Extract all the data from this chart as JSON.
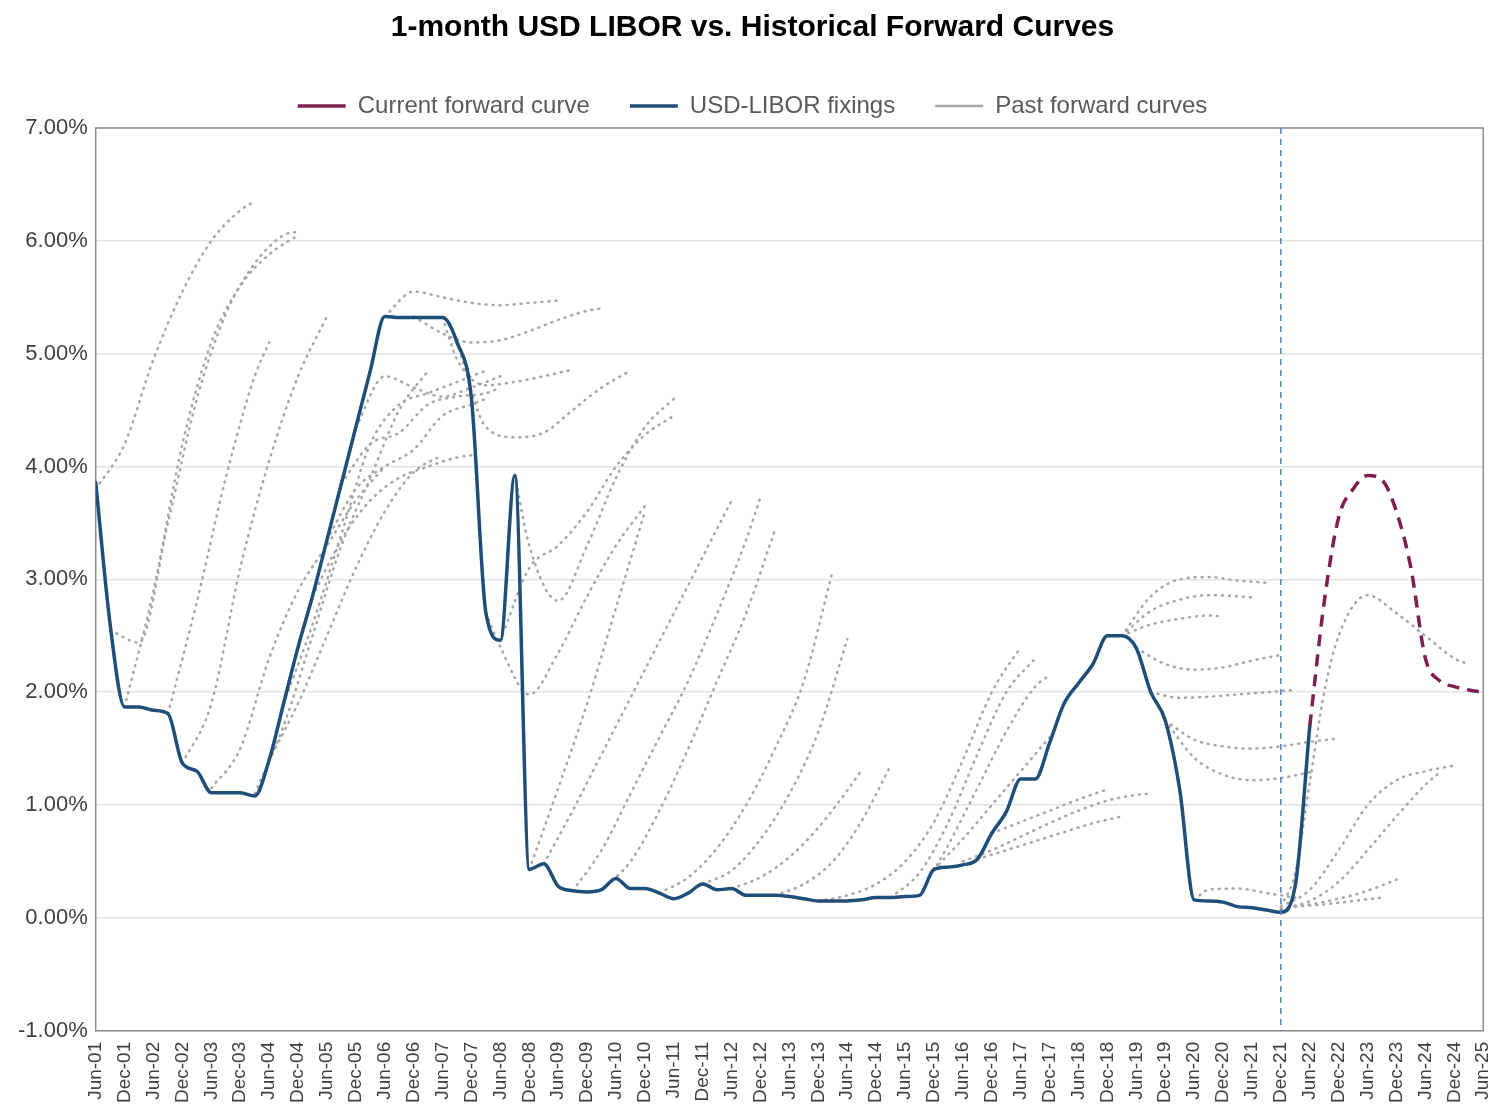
{
  "chart_data": {
    "type": "line",
    "title": "1-month USD LIBOR vs. Historical Forward Curves",
    "marker": "none",
    "grid": "y",
    "legend": "top",
    "xlim": [
      "2001-06",
      "2025-06"
    ],
    "xticks": [
      {
        "value": "2001-06",
        "label": "Jun-01"
      },
      {
        "value": "2001-12",
        "label": "Dec-01"
      },
      {
        "value": "2002-06",
        "label": "Jun-02"
      },
      {
        "value": "2002-12",
        "label": "Dec-02"
      },
      {
        "value": "2003-06",
        "label": "Jun-03"
      },
      {
        "value": "2003-12",
        "label": "Dec-03"
      },
      {
        "value": "2004-06",
        "label": "Jun-04"
      },
      {
        "value": "2004-12",
        "label": "Dec-04"
      },
      {
        "value": "2005-06",
        "label": "Jun-05"
      },
      {
        "value": "2005-12",
        "label": "Dec-05"
      },
      {
        "value": "2006-06",
        "label": "Jun-06"
      },
      {
        "value": "2006-12",
        "label": "Dec-06"
      },
      {
        "value": "2007-06",
        "label": "Jun-07"
      },
      {
        "value": "2007-12",
        "label": "Dec-07"
      },
      {
        "value": "2008-06",
        "label": "Jun-08"
      },
      {
        "value": "2008-12",
        "label": "Dec-08"
      },
      {
        "value": "2009-06",
        "label": "Jun-09"
      },
      {
        "value": "2009-12",
        "label": "Dec-09"
      },
      {
        "value": "2010-06",
        "label": "Jun-10"
      },
      {
        "value": "2010-12",
        "label": "Dec-10"
      },
      {
        "value": "2011-06",
        "label": "Jun-11"
      },
      {
        "value": "2011-12",
        "label": "Dec-11"
      },
      {
        "value": "2012-06",
        "label": "Jun-12"
      },
      {
        "value": "2012-12",
        "label": "Dec-12"
      },
      {
        "value": "2013-06",
        "label": "Jun-13"
      },
      {
        "value": "2013-12",
        "label": "Dec-13"
      },
      {
        "value": "2014-06",
        "label": "Jun-14"
      },
      {
        "value": "2014-12",
        "label": "Dec-14"
      },
      {
        "value": "2015-06",
        "label": "Jun-15"
      },
      {
        "value": "2015-12",
        "label": "Dec-15"
      },
      {
        "value": "2016-06",
        "label": "Jun-16"
      },
      {
        "value": "2016-12",
        "label": "Dec-16"
      },
      {
        "value": "2017-06",
        "label": "Jun-17"
      },
      {
        "value": "2017-12",
        "label": "Dec-17"
      },
      {
        "value": "2018-06",
        "label": "Jun-18"
      },
      {
        "value": "2018-12",
        "label": "Dec-18"
      },
      {
        "value": "2019-06",
        "label": "Jun-19"
      },
      {
        "value": "2019-12",
        "label": "Dec-19"
      },
      {
        "value": "2020-06",
        "label": "Jun-20"
      },
      {
        "value": "2020-12",
        "label": "Dec-20"
      },
      {
        "value": "2021-06",
        "label": "Jun-21"
      },
      {
        "value": "2021-12",
        "label": "Dec-21"
      },
      {
        "value": "2022-06",
        "label": "Jun-22"
      },
      {
        "value": "2022-12",
        "label": "Dec-22"
      },
      {
        "value": "2023-06",
        "label": "Jun-23"
      },
      {
        "value": "2023-12",
        "label": "Dec-23"
      },
      {
        "value": "2024-06",
        "label": "Jun-24"
      },
      {
        "value": "2024-12",
        "label": "Dec-24"
      },
      {
        "value": "2025-06",
        "label": "Jun-25"
      }
    ],
    "ylim": [
      -1,
      7
    ],
    "yticks": [
      {
        "value": -1,
        "label": "-1.00%"
      },
      {
        "value": 0,
        "label": "0.00%"
      },
      {
        "value": 1,
        "label": "1.00%"
      },
      {
        "value": 2,
        "label": "2.00%"
      },
      {
        "value": 3,
        "label": "3.00%"
      },
      {
        "value": 4,
        "label": "4.00%"
      },
      {
        "value": 5,
        "label": "5.00%"
      },
      {
        "value": 6,
        "label": "6.00%"
      },
      {
        "value": 7,
        "label": "7.00%"
      }
    ],
    "ref_lines": [
      {
        "axis": "x",
        "value": "2021-12",
        "color": "#4f81bd",
        "line_style": "dashed"
      }
    ],
    "series": [
      {
        "name": "Past forward curves",
        "color": "#a6a6a6",
        "line_style": "dotted",
        "x": [
          "2001-06",
          "2001-12",
          "2002-06",
          "2002-12",
          "2003-06",
          "2003-12",
          "2004-03"
        ],
        "values": [
          3.8,
          4.2,
          4.95,
          5.55,
          6.0,
          6.27,
          6.35
        ]
      },
      {
        "color": "#a6a6a6",
        "line_style": "dotted",
        "x": [
          "2001-09",
          "2002-03",
          "2002-09",
          "2003-03",
          "2003-09",
          "2004-03",
          "2004-09",
          "2004-12"
        ],
        "values": [
          2.55,
          2.44,
          3.5,
          4.6,
          5.35,
          5.8,
          6.05,
          6.08
        ]
      },
      {
        "color": "#a6a6a6",
        "line_style": "dotted",
        "x": [
          "2001-12",
          "2002-06",
          "2002-12",
          "2003-06",
          "2003-12",
          "2004-06",
          "2004-12"
        ],
        "values": [
          1.87,
          2.9,
          4.2,
          5.1,
          5.6,
          5.88,
          6.05
        ]
      },
      {
        "color": "#a6a6a6",
        "line_style": "dotted",
        "x": [
          "2002-09",
          "2003-03",
          "2003-09",
          "2004-03",
          "2004-06"
        ],
        "values": [
          1.81,
          2.8,
          3.9,
          4.8,
          5.1
        ]
      },
      {
        "color": "#a6a6a6",
        "line_style": "dotted",
        "x": [
          "2002-12",
          "2003-06",
          "2003-12",
          "2004-06",
          "2004-12",
          "2005-06"
        ],
        "values": [
          1.37,
          1.9,
          3.1,
          4.05,
          4.8,
          5.33
        ]
      },
      {
        "color": "#a6a6a6",
        "line_style": "dotted",
        "x": [
          "2003-06",
          "2003-12",
          "2004-06",
          "2004-12",
          "2005-06",
          "2005-12",
          "2006-06"
        ],
        "values": [
          1.15,
          1.5,
          2.3,
          2.9,
          3.3,
          3.7,
          4.0
        ]
      },
      {
        "color": "#a6a6a6",
        "line_style": "dotted",
        "x": [
          "2004-03",
          "2004-09",
          "2005-03",
          "2005-09",
          "2006-03",
          "2006-09",
          "2007-03"
        ],
        "values": [
          1.1,
          1.7,
          2.5,
          3.3,
          3.9,
          4.5,
          4.85
        ]
      },
      {
        "color": "#a6a6a6",
        "line_style": "dotted",
        "x": [
          "2004-06",
          "2004-12",
          "2005-06",
          "2005-12",
          "2006-06",
          "2006-12",
          "2007-06"
        ],
        "values": [
          1.4,
          1.9,
          2.5,
          3.1,
          3.6,
          3.95,
          4.1
        ]
      },
      {
        "color": "#a6a6a6",
        "line_style": "dotted",
        "x": [
          "2004-09",
          "2005-03",
          "2005-09",
          "2006-03",
          "2006-09",
          "2007-03",
          "2007-09",
          "2008-03"
        ],
        "values": [
          1.9,
          2.6,
          3.4,
          4.2,
          4.55,
          4.65,
          4.75,
          4.85
        ]
      },
      {
        "color": "#a6a6a6",
        "line_style": "dotted",
        "x": [
          "2005-12",
          "2006-06",
          "2006-12",
          "2007-06",
          "2007-12",
          "2008-06"
        ],
        "values": [
          4.35,
          4.8,
          4.7,
          4.62,
          4.7,
          4.8
        ]
      },
      {
        "color": "#a6a6a6",
        "line_style": "dotted",
        "x": [
          "2005-09",
          "2006-03",
          "2006-09",
          "2007-03",
          "2007-09",
          "2008-03",
          "2008-06"
        ],
        "values": [
          3.85,
          4.2,
          4.3,
          4.55,
          4.62,
          4.65,
          4.7
        ]
      },
      {
        "color": "#a6a6a6",
        "line_style": "dotted",
        "x": [
          "2005-06",
          "2005-12",
          "2006-06",
          "2006-12",
          "2007-06",
          "2007-12",
          "2008-03"
        ],
        "values": [
          3.35,
          3.8,
          4.0,
          4.15,
          4.45,
          4.55,
          4.6
        ]
      },
      {
        "color": "#a6a6a6",
        "line_style": "dotted",
        "x": [
          "2005-03",
          "2005-09",
          "2006-03",
          "2006-09",
          "2007-03",
          "2007-09",
          "2007-12"
        ],
        "values": [
          2.85,
          3.35,
          3.7,
          3.9,
          4.0,
          4.08,
          4.1
        ]
      },
      {
        "color": "#a6a6a6",
        "line_style": "dotted",
        "x": [
          "2006-06",
          "2006-12",
          "2007-06",
          "2007-12",
          "2008-06",
          "2008-12",
          "2009-06"
        ],
        "values": [
          5.33,
          5.55,
          5.5,
          5.45,
          5.43,
          5.45,
          5.47
        ]
      },
      {
        "color": "#a6a6a6",
        "line_style": "dotted",
        "x": [
          "2006-12",
          "2007-06",
          "2007-12",
          "2008-06",
          "2008-12",
          "2009-06",
          "2009-12",
          "2010-03"
        ],
        "values": [
          5.33,
          5.18,
          5.1,
          5.12,
          5.2,
          5.3,
          5.38,
          5.4
        ]
      },
      {
        "color": "#a6a6a6",
        "line_style": "dotted",
        "x": [
          "2007-06",
          "2007-09",
          "2008-03",
          "2008-09",
          "2009-03",
          "2009-09"
        ],
        "values": [
          5.32,
          4.95,
          4.72,
          4.75,
          4.8,
          4.86
        ]
      },
      {
        "color": "#a6a6a6",
        "line_style": "dotted",
        "x": [
          "2007-09",
          "2008-03",
          "2008-09",
          "2009-03",
          "2009-09",
          "2010-03",
          "2010-09"
        ],
        "values": [
          5.1,
          4.35,
          4.26,
          4.3,
          4.5,
          4.7,
          4.85
        ]
      },
      {
        "color": "#a6a6a6",
        "line_style": "dotted",
        "x": [
          "2008-03",
          "2008-06",
          "2008-12",
          "2009-06",
          "2009-12",
          "2010-06",
          "2010-12"
        ],
        "values": [
          2.7,
          2.4,
          1.98,
          2.35,
          2.85,
          3.3,
          3.65
        ]
      },
      {
        "color": "#a6a6a6",
        "line_style": "dotted",
        "x": [
          "2008-09",
          "2008-12",
          "2009-06",
          "2009-12",
          "2010-06",
          "2010-12",
          "2011-06"
        ],
        "values": [
          3.92,
          3.3,
          2.81,
          3.3,
          3.9,
          4.35,
          4.6
        ]
      },
      {
        "color": "#a6a6a6",
        "line_style": "dotted",
        "x": [
          "2008-06",
          "2008-12",
          "2009-06",
          "2009-12",
          "2010-06",
          "2010-12",
          "2011-06"
        ],
        "values": [
          2.46,
          3.1,
          3.3,
          3.6,
          4.0,
          4.28,
          4.45
        ]
      },
      {
        "color": "#a6a6a6",
        "line_style": "dotted",
        "x": [
          "2008-12",
          "2009-06",
          "2009-12",
          "2010-06",
          "2010-12"
        ],
        "values": [
          0.43,
          1.15,
          1.9,
          2.75,
          3.6
        ]
      },
      {
        "color": "#a6a6a6",
        "line_style": "dotted",
        "x": [
          "2009-03",
          "2009-09",
          "2010-03",
          "2010-09",
          "2011-03",
          "2011-09",
          "2012-03",
          "2012-06"
        ],
        "values": [
          0.48,
          0.95,
          1.45,
          1.95,
          2.45,
          2.95,
          3.45,
          3.7
        ]
      },
      {
        "color": "#a6a6a6",
        "line_style": "dotted",
        "x": [
          "2009-09",
          "2010-03",
          "2010-09",
          "2011-03",
          "2011-09",
          "2012-03",
          "2012-09",
          "2012-12"
        ],
        "values": [
          0.24,
          0.6,
          1.1,
          1.6,
          2.1,
          2.7,
          3.35,
          3.73
        ]
      },
      {
        "color": "#a6a6a6",
        "line_style": "dotted",
        "x": [
          "2010-03",
          "2010-09",
          "2011-03",
          "2011-09",
          "2012-03",
          "2012-09",
          "2013-03"
        ],
        "values": [
          0.25,
          0.5,
          0.95,
          1.5,
          2.1,
          2.7,
          3.44
        ]
      },
      {
        "color": "#a6a6a6",
        "line_style": "dotted",
        "x": [
          "2011-03",
          "2011-09",
          "2012-03",
          "2012-09",
          "2013-03",
          "2013-09",
          "2014-03"
        ],
        "values": [
          0.22,
          0.36,
          0.62,
          1.0,
          1.5,
          2.1,
          3.08
        ]
      },
      {
        "color": "#a6a6a6",
        "line_style": "dotted",
        "x": [
          "2011-12",
          "2012-06",
          "2012-12",
          "2013-06",
          "2013-12",
          "2014-06"
        ],
        "values": [
          0.3,
          0.42,
          0.7,
          1.1,
          1.65,
          2.47
        ]
      },
      {
        "color": "#a6a6a6",
        "line_style": "dotted",
        "x": [
          "2012-06",
          "2012-12",
          "2013-06",
          "2013-12",
          "2014-06",
          "2014-09"
        ],
        "values": [
          0.26,
          0.36,
          0.54,
          0.8,
          1.13,
          1.31
        ]
      },
      {
        "color": "#a6a6a6",
        "line_style": "dotted",
        "x": [
          "2013-03",
          "2013-09",
          "2014-03",
          "2014-09",
          "2015-03"
        ],
        "values": [
          0.2,
          0.3,
          0.5,
          0.86,
          1.35
        ]
      },
      {
        "color": "#a6a6a6",
        "line_style": "dotted",
        "x": [
          "2013-12",
          "2014-06",
          "2014-12",
          "2015-06",
          "2015-12",
          "2016-06",
          "2016-12",
          "2017-06"
        ],
        "values": [
          0.15,
          0.2,
          0.3,
          0.5,
          0.85,
          1.4,
          2.0,
          2.4
        ]
      },
      {
        "color": "#a6a6a6",
        "line_style": "dotted",
        "x": [
          "2015-03",
          "2015-09",
          "2016-03",
          "2016-09",
          "2017-03",
          "2017-09"
        ],
        "values": [
          0.18,
          0.4,
          0.85,
          1.45,
          2.0,
          2.3
        ]
      },
      {
        "color": "#a6a6a6",
        "line_style": "dotted",
        "x": [
          "2015-09",
          "2016-03",
          "2016-09",
          "2017-03",
          "2017-09",
          "2017-12"
        ],
        "values": [
          0.2,
          0.65,
          1.15,
          1.65,
          2.05,
          2.15
        ]
      },
      {
        "color": "#a6a6a6",
        "line_style": "dotted",
        "x": [
          "2015-12",
          "2016-06",
          "2016-12",
          "2017-06",
          "2017-12"
        ],
        "values": [
          0.43,
          0.7,
          1.0,
          1.3,
          1.6
        ]
      },
      {
        "color": "#a6a6a6",
        "line_style": "dotted",
        "x": [
          "2016-06",
          "2016-12",
          "2017-06",
          "2017-12",
          "2018-06",
          "2018-12",
          "2019-06",
          "2019-09"
        ],
        "values": [
          0.5,
          0.6,
          0.72,
          0.84,
          0.95,
          1.04,
          1.09,
          1.1
        ]
      },
      {
        "color": "#a6a6a6",
        "line_style": "dotted",
        "x": [
          "2016-09",
          "2017-03",
          "2017-09",
          "2018-03",
          "2018-09",
          "2019-03"
        ],
        "values": [
          0.52,
          0.6,
          0.68,
          0.76,
          0.84,
          0.9
        ]
      },
      {
        "color": "#a6a6a6",
        "line_style": "dotted",
        "x": [
          "2016-12",
          "2017-06",
          "2017-12",
          "2018-06",
          "2018-12"
        ],
        "values": [
          0.75,
          0.85,
          0.95,
          1.05,
          1.14
        ]
      },
      {
        "color": "#a6a6a6",
        "line_style": "dotted",
        "x": [
          "2019-03",
          "2019-09",
          "2020-03",
          "2020-09",
          "2021-03",
          "2021-09"
        ],
        "values": [
          2.5,
          2.85,
          3.0,
          3.02,
          2.99,
          2.97
        ]
      },
      {
        "color": "#a6a6a6",
        "line_style": "dotted",
        "x": [
          "2019-03",
          "2019-09",
          "2020-03",
          "2020-09",
          "2021-03",
          "2021-06"
        ],
        "values": [
          2.5,
          2.72,
          2.82,
          2.86,
          2.85,
          2.84
        ]
      },
      {
        "color": "#a6a6a6",
        "line_style": "dotted",
        "x": [
          "2019-03",
          "2019-09",
          "2020-03",
          "2020-09",
          "2020-12"
        ],
        "values": [
          2.5,
          2.6,
          2.65,
          2.68,
          2.67
        ]
      },
      {
        "color": "#a6a6a6",
        "line_style": "dotted",
        "x": [
          "2019-06",
          "2019-12",
          "2020-06",
          "2020-12",
          "2021-06",
          "2021-12"
        ],
        "values": [
          2.39,
          2.25,
          2.2,
          2.22,
          2.28,
          2.33
        ]
      },
      {
        "color": "#a6a6a6",
        "line_style": "dotted",
        "x": [
          "2019-09",
          "2020-03",
          "2020-09",
          "2021-03",
          "2021-09",
          "2022-03"
        ],
        "values": [
          2.0,
          1.95,
          1.96,
          1.98,
          2.0,
          2.02
        ]
      },
      {
        "color": "#a6a6a6",
        "line_style": "dotted",
        "x": [
          "2019-12",
          "2020-06",
          "2020-12",
          "2021-06",
          "2021-12",
          "2022-06",
          "2022-12"
        ],
        "values": [
          1.75,
          1.58,
          1.52,
          1.5,
          1.52,
          1.56,
          1.59
        ]
      },
      {
        "color": "#a6a6a6",
        "line_style": "dotted",
        "x": [
          "2019-12",
          "2020-06",
          "2020-12",
          "2021-06",
          "2021-12",
          "2022-06"
        ],
        "values": [
          1.75,
          1.42,
          1.27,
          1.22,
          1.24,
          1.29
        ]
      },
      {
        "color": "#a6a6a6",
        "line_style": "dotted",
        "x": [
          "2020-06",
          "2020-09",
          "2021-03",
          "2021-09",
          "2022-03"
        ],
        "values": [
          0.16,
          0.25,
          0.26,
          0.22,
          0.18
        ]
      },
      {
        "color": "#a6a6a6",
        "line_style": "dotted",
        "x": [
          "2021-12",
          "2022-03",
          "2022-06",
          "2022-09",
          "2022-12",
          "2023-06",
          "2023-12",
          "2024-06",
          "2024-12",
          "2025-03"
        ],
        "values": [
          0.1,
          0.4,
          1.2,
          2.0,
          2.5,
          2.86,
          2.7,
          2.5,
          2.3,
          2.25
        ]
      },
      {
        "color": "#a6a6a6",
        "line_style": "dotted",
        "x": [
          "2021-12",
          "2022-06",
          "2022-12",
          "2023-06",
          "2023-12",
          "2024-06",
          "2024-12"
        ],
        "values": [
          0.1,
          0.25,
          0.6,
          1.0,
          1.22,
          1.3,
          1.35
        ]
      },
      {
        "color": "#a6a6a6",
        "line_style": "dotted",
        "x": [
          "2021-12",
          "2022-06",
          "2022-12",
          "2023-06",
          "2023-12",
          "2024-06",
          "2024-09"
        ],
        "values": [
          0.08,
          0.15,
          0.32,
          0.6,
          0.9,
          1.18,
          1.29
        ]
      },
      {
        "color": "#a6a6a6",
        "line_style": "dotted",
        "x": [
          "2021-12",
          "2022-06",
          "2022-12",
          "2023-06",
          "2023-12"
        ],
        "values": [
          0.08,
          0.12,
          0.17,
          0.24,
          0.34
        ]
      },
      {
        "color": "#a6a6a6",
        "line_style": "dotted",
        "x": [
          "2022-03",
          "2022-09",
          "2023-03",
          "2023-09"
        ],
        "values": [
          0.1,
          0.12,
          0.15,
          0.18
        ]
      },
      {
        "name": "USD-LIBOR fixings",
        "color": "#1f4e79",
        "line_style": "solid",
        "x": [
          "2001-06",
          "2001-09",
          "2001-12",
          "2002-03",
          "2002-06",
          "2002-09",
          "2002-12",
          "2003-03",
          "2003-06",
          "2003-09",
          "2003-12",
          "2004-03",
          "2004-06",
          "2004-09",
          "2004-12",
          "2005-03",
          "2005-06",
          "2005-09",
          "2005-12",
          "2006-03",
          "2006-06",
          "2006-09",
          "2006-12",
          "2007-03",
          "2007-06",
          "2007-09",
          "2007-12",
          "2008-03",
          "2008-06",
          "2008-09",
          "2008-12",
          "2009-03",
          "2009-06",
          "2009-09",
          "2009-12",
          "2010-03",
          "2010-06",
          "2010-09",
          "2010-12",
          "2011-03",
          "2011-06",
          "2011-09",
          "2011-12",
          "2012-03",
          "2012-06",
          "2012-09",
          "2012-12",
          "2013-03",
          "2013-06",
          "2013-09",
          "2013-12",
          "2014-03",
          "2014-06",
          "2014-09",
          "2014-12",
          "2015-03",
          "2015-06",
          "2015-09",
          "2015-12",
          "2016-03",
          "2016-06",
          "2016-09",
          "2016-12",
          "2017-03",
          "2017-06",
          "2017-09",
          "2017-12",
          "2018-03",
          "2018-06",
          "2018-09",
          "2018-12",
          "2019-03",
          "2019-06",
          "2019-09",
          "2019-12",
          "2020-03",
          "2020-06",
          "2020-09",
          "2020-12",
          "2021-03",
          "2021-06",
          "2021-09",
          "2021-12",
          "2022-03",
          "2022-06"
        ],
        "values": [
          3.86,
          2.6,
          1.87,
          1.87,
          1.84,
          1.81,
          1.37,
          1.3,
          1.11,
          1.11,
          1.11,
          1.08,
          1.4,
          1.9,
          2.4,
          2.85,
          3.35,
          3.85,
          4.35,
          4.85,
          5.33,
          5.32,
          5.32,
          5.32,
          5.32,
          5.1,
          4.6,
          2.7,
          2.46,
          3.92,
          0.43,
          0.48,
          0.28,
          0.24,
          0.23,
          0.25,
          0.35,
          0.26,
          0.26,
          0.22,
          0.17,
          0.22,
          0.3,
          0.25,
          0.26,
          0.2,
          0.2,
          0.2,
          0.19,
          0.17,
          0.15,
          0.15,
          0.15,
          0.16,
          0.18,
          0.18,
          0.19,
          0.2,
          0.43,
          0.45,
          0.47,
          0.52,
          0.75,
          0.94,
          1.23,
          1.23,
          1.55,
          1.9,
          2.08,
          2.25,
          2.5,
          2.5,
          2.39,
          2.0,
          1.75,
          1.14,
          0.16,
          0.15,
          0.14,
          0.1,
          0.09,
          0.07,
          0.05,
          0.29,
          1.7
        ]
      },
      {
        "name": "Current forward curve",
        "color": "#7f1f4f",
        "line_style": "dashed",
        "x": [
          "2022-06",
          "2022-09",
          "2022-12",
          "2023-03",
          "2023-06",
          "2023-09",
          "2023-12",
          "2024-03",
          "2024-06",
          "2024-09",
          "2024-12",
          "2025-03",
          "2025-06"
        ],
        "values": [
          1.7,
          2.8,
          3.55,
          3.8,
          3.92,
          3.88,
          3.6,
          3.1,
          2.3,
          2.1,
          2.05,
          2.02,
          2.0
        ]
      }
    ]
  }
}
